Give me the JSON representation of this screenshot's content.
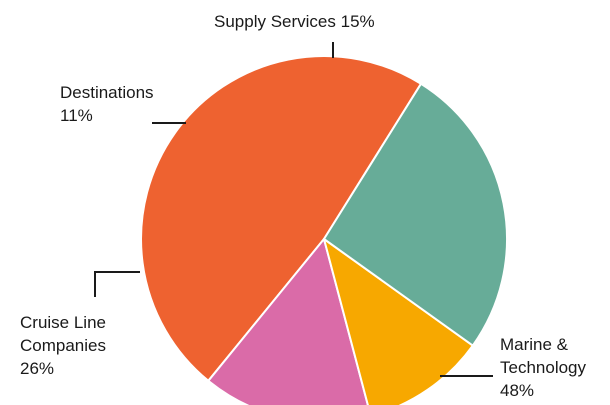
{
  "chart_data": {
    "type": "pie",
    "title": "",
    "start_angle_deg": 58,
    "direction": "counterclockwise",
    "slices": [
      {
        "label": "Marine & Technology",
        "label_lines": [
          "Marine &",
          "Technology",
          "48%"
        ],
        "value": 48,
        "display": "48%",
        "color": "#EE6230"
      },
      {
        "label": "Supply Services",
        "label_lines": [
          "Supply Services 15%"
        ],
        "value": 15,
        "display": "15%",
        "color": "#DA6BA8"
      },
      {
        "label": "Destinations",
        "label_lines": [
          "Destinations",
          "11%"
        ],
        "value": 11,
        "display": "11%",
        "color": "#F7A800"
      },
      {
        "label": "Cruise Line Companies",
        "label_lines": [
          "Cruise Line",
          "Companies",
          "26%"
        ],
        "value": 26,
        "display": "26%",
        "color": "#67AC98"
      }
    ]
  }
}
